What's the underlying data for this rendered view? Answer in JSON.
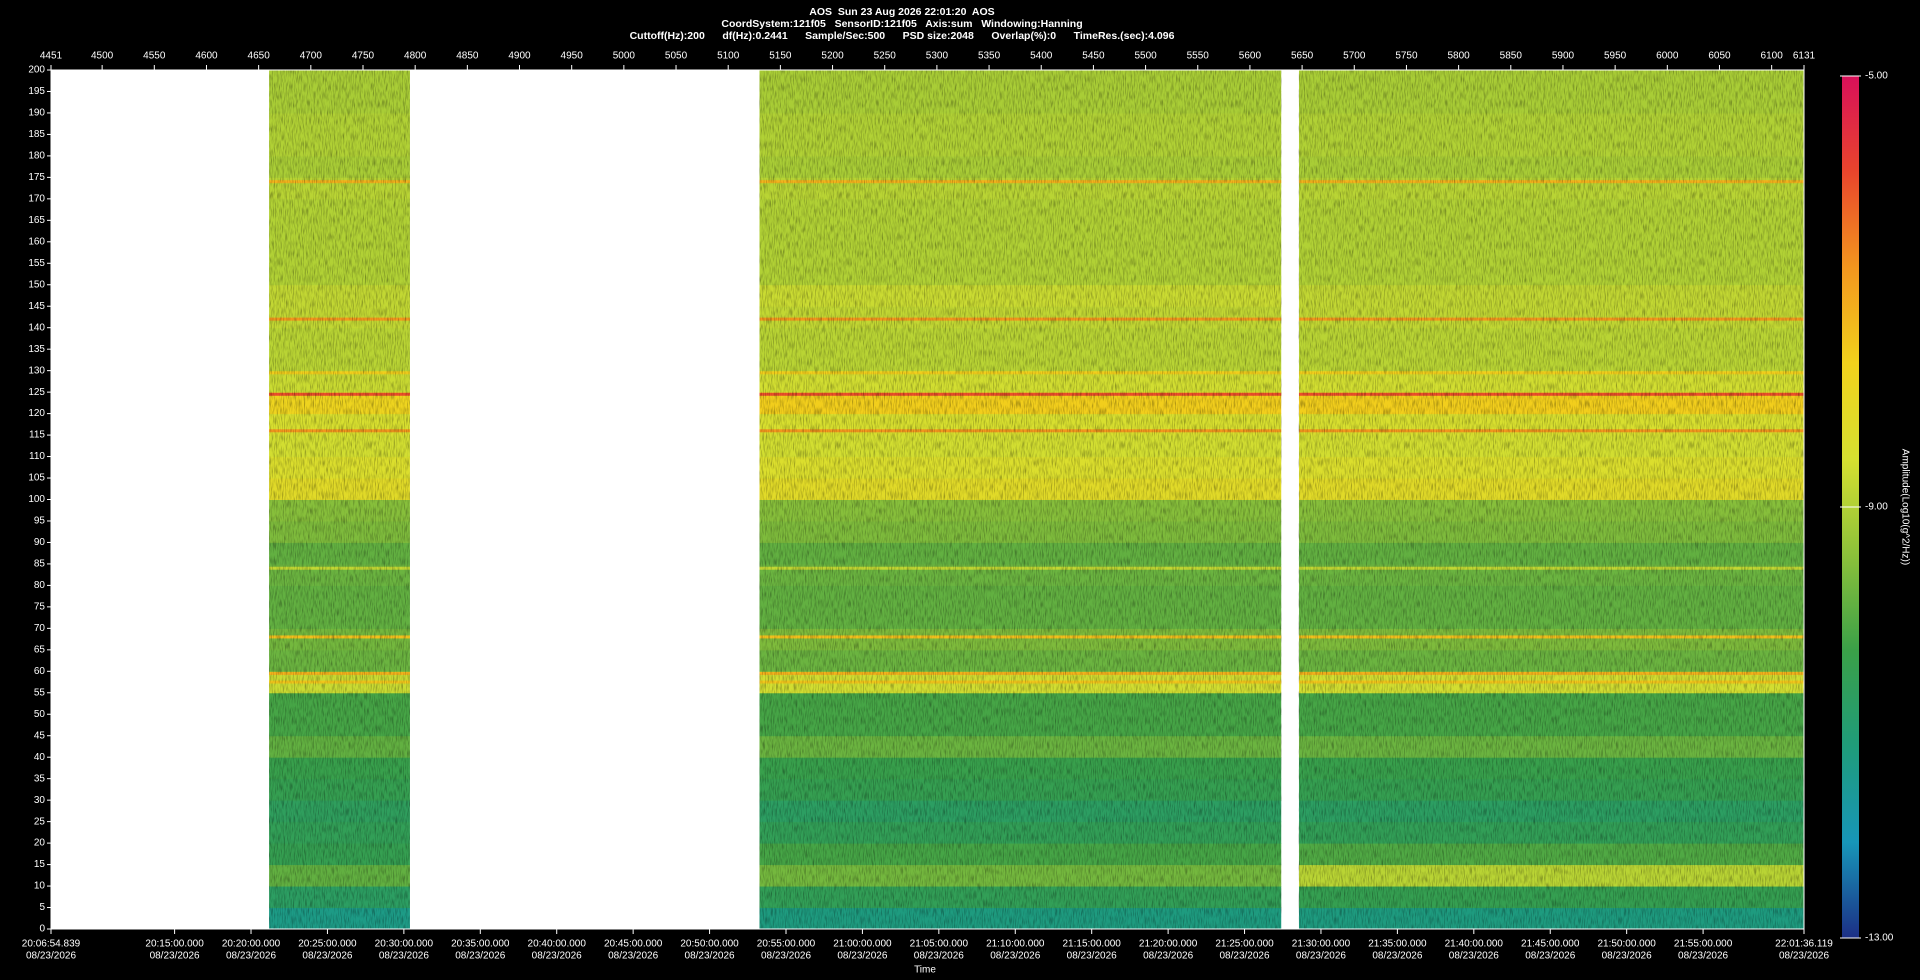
{
  "chart_data": {
    "type": "spectrogram",
    "title": "AOS  Sun 23 Aug 2026 22:01:20  AOS",
    "subtitle": "CoordSystem:121f05   SensorID:121f05   Axis:sum   Windowing:Hanning",
    "subtitle2": "Cuttoff(Hz):200      df(Hz):0.2441      Sample/Sec:500      PSD size:2048      Overlap(%):0      TimeRes.(sec):4.096",
    "x2label": "Time",
    "x2_tick_date": "08/23/2026",
    "xlim": [
      4451,
      6131
    ],
    "xticks": [
      4451,
      4500,
      4550,
      4600,
      4650,
      4700,
      4750,
      4800,
      4850,
      4900,
      4950,
      5000,
      5050,
      5100,
      5150,
      5200,
      5250,
      5300,
      5350,
      5400,
      5450,
      5500,
      5550,
      5600,
      5650,
      5700,
      5750,
      5800,
      5850,
      5900,
      5950,
      6000,
      6050,
      6100,
      6131
    ],
    "x2lim": [
      72414.839,
      79296.119
    ],
    "x2ticks": [
      {
        "value": 72414.839,
        "label": "20:06:54.839"
      },
      {
        "value": 72900,
        "label": "20:15:00.000"
      },
      {
        "value": 73200,
        "label": "20:20:00.000"
      },
      {
        "value": 73500,
        "label": "20:25:00.000"
      },
      {
        "value": 73800,
        "label": "20:30:00.000"
      },
      {
        "value": 74100,
        "label": "20:35:00.000"
      },
      {
        "value": 74400,
        "label": "20:40:00.000"
      },
      {
        "value": 74700,
        "label": "20:45:00.000"
      },
      {
        "value": 75000,
        "label": "20:50:00.000"
      },
      {
        "value": 75300,
        "label": "20:55:00.000"
      },
      {
        "value": 75600,
        "label": "21:00:00.000"
      },
      {
        "value": 75900,
        "label": "21:05:00.000"
      },
      {
        "value": 76200,
        "label": "21:10:00.000"
      },
      {
        "value": 76500,
        "label": "21:15:00.000"
      },
      {
        "value": 76800,
        "label": "21:20:00.000"
      },
      {
        "value": 77100,
        "label": "21:25:00.000"
      },
      {
        "value": 77400,
        "label": "21:30:00.000"
      },
      {
        "value": 77700,
        "label": "21:35:00.000"
      },
      {
        "value": 78000,
        "label": "21:40:00.000"
      },
      {
        "value": 78300,
        "label": "21:45:00.000"
      },
      {
        "value": 78600,
        "label": "21:50:00.000"
      },
      {
        "value": 78900,
        "label": "21:55:00.000"
      },
      {
        "value": 79296.119,
        "label": "22:01:36.119"
      }
    ],
    "ylim": [
      0,
      200
    ],
    "yticks": [
      0,
      5,
      10,
      15,
      20,
      25,
      30,
      35,
      40,
      45,
      50,
      55,
      60,
      65,
      70,
      75,
      80,
      85,
      90,
      95,
      100,
      105,
      110,
      115,
      120,
      125,
      130,
      135,
      140,
      145,
      150,
      155,
      160,
      165,
      170,
      175,
      180,
      185,
      190,
      195,
      200
    ],
    "ybins": [
      0,
      5,
      10,
      15,
      20,
      25,
      30,
      35,
      40,
      45,
      50,
      55,
      60,
      65,
      70,
      75,
      80,
      85,
      90,
      95,
      100,
      105,
      110,
      115,
      120,
      125,
      130,
      135,
      140,
      145,
      150,
      155,
      160,
      165,
      170,
      175,
      180,
      185,
      190,
      195,
      200
    ],
    "zlim": [
      -13,
      -5
    ],
    "zticks": [
      {
        "value": -13,
        "label": "-13.00"
      },
      {
        "value": -9,
        "label": "-9.00"
      },
      {
        "value": -5,
        "label": "-5.00"
      }
    ],
    "zlabel": "Amplitude(Log10(g^2/Hz))",
    "colormap": [
      "#1c2f86",
      "#1796b8",
      "#1f9c7a",
      "#3aa048",
      "#8cc13a",
      "#d6e030",
      "#f2d21c",
      "#f3961e",
      "#e9452c",
      "#d8105a"
    ],
    "segments": [
      {
        "start": 4660,
        "end": 4795,
        "values": [
          -11.4,
          -10.8,
          -9.9,
          -10.5,
          -10.6,
          -10.7,
          -10.5,
          -10.4,
          -9.9,
          -10.2,
          -10.2,
          -8.7,
          -9.8,
          -9.7,
          -9.9,
          -9.9,
          -9.8,
          -9.9,
          -9.6,
          -9.5,
          -8.2,
          -8.4,
          -8.6,
          -8.5,
          -7.8,
          -8.7,
          -8.9,
          -8.9,
          -8.8,
          -8.8,
          -9.0,
          -9.0,
          -9.0,
          -9.0,
          -8.9,
          -9.1,
          -9.0,
          -9.0,
          -9.1,
          -9.1
        ]
      },
      {
        "start": 5130,
        "end": 5630,
        "values": [
          -11.3,
          -10.6,
          -9.7,
          -10.2,
          -10.6,
          -10.8,
          -10.5,
          -10.4,
          -9.8,
          -10.2,
          -10.2,
          -8.6,
          -9.8,
          -9.6,
          -9.9,
          -9.9,
          -9.8,
          -9.9,
          -9.6,
          -9.5,
          -8.2,
          -8.4,
          -8.6,
          -8.5,
          -7.6,
          -8.6,
          -8.9,
          -8.9,
          -8.8,
          -8.7,
          -9.0,
          -9.0,
          -9.0,
          -9.0,
          -8.9,
          -9.1,
          -9.0,
          -9.0,
          -9.1,
          -9.1
        ]
      },
      {
        "start": 5647,
        "end": 6131,
        "values": [
          -11.3,
          -10.5,
          -8.9,
          -10.1,
          -10.6,
          -10.8,
          -10.5,
          -10.4,
          -9.8,
          -10.2,
          -10.2,
          -8.6,
          -9.8,
          -9.6,
          -9.9,
          -9.9,
          -9.8,
          -9.9,
          -9.6,
          -9.5,
          -8.2,
          -8.4,
          -8.6,
          -8.5,
          -7.6,
          -8.6,
          -8.9,
          -8.9,
          -8.8,
          -8.8,
          -9.0,
          -9.0,
          -9.0,
          -9.0,
          -8.9,
          -9.1,
          -9.0,
          -9.0,
          -9.1,
          -9.1
        ]
      }
    ],
    "tones": [
      {
        "freq": 174,
        "amp": -7.2
      },
      {
        "freq": 142,
        "amp": -6.8
      },
      {
        "freq": 129.5,
        "amp": -7.6
      },
      {
        "freq": 124.5,
        "amp": -6.0
      },
      {
        "freq": 116,
        "amp": -6.8
      },
      {
        "freq": 68,
        "amp": -7.4
      },
      {
        "freq": 59.5,
        "amp": -7.2
      },
      {
        "freq": 57.5,
        "amp": -7.5
      },
      {
        "freq": 84,
        "amp": -8.8
      }
    ]
  }
}
